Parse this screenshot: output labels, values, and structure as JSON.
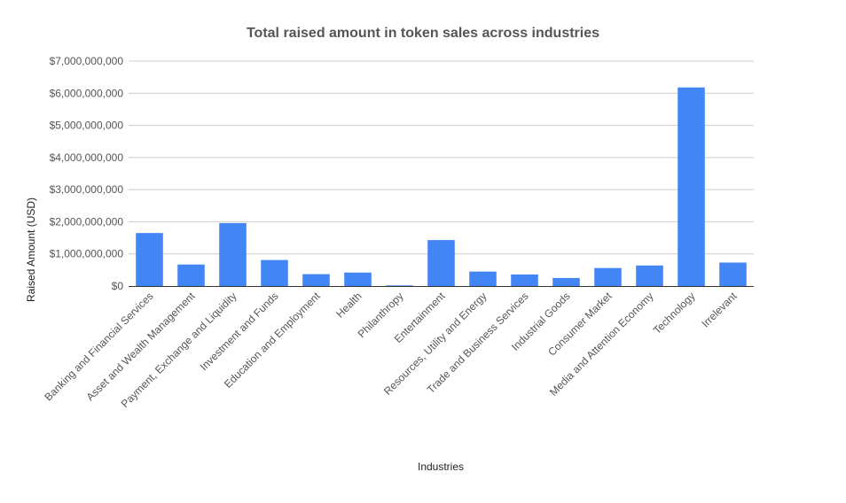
{
  "chart_data": {
    "type": "bar",
    "title": "Total raised amount in token sales across industries",
    "xlabel": "Industries",
    "ylabel": "Raised Amount (USD)",
    "ylim": [
      0,
      7000000000
    ],
    "yticks": [
      {
        "value": 0,
        "label": "$0"
      },
      {
        "value": 1000000000,
        "label": "$1,000,000,000"
      },
      {
        "value": 2000000000,
        "label": "$2,000,000,000"
      },
      {
        "value": 3000000000,
        "label": "$3,000,000,000"
      },
      {
        "value": 4000000000,
        "label": "$4,000,000,000"
      },
      {
        "value": 5000000000,
        "label": "$5,000,000,000"
      },
      {
        "value": 6000000000,
        "label": "$6,000,000,000"
      },
      {
        "value": 7000000000,
        "label": "$7,000,000,000"
      }
    ],
    "grid": true,
    "legend": "none",
    "bar_color": "#4285f4",
    "categories": [
      "Banking and Financial Services",
      "Asset and Wealth Management",
      "Payment, Exchange and Liquidity",
      "Investment and Funds",
      "Education and Employment",
      "Health",
      "Philanthropy",
      "Entertainment",
      "Resources, Utility and Energy",
      "Trade and Business Services",
      "Industrial Goods",
      "Consumer Market",
      "Media and Attention Economy",
      "Technology",
      "Irrelevant"
    ],
    "values": [
      1650000000,
      670000000,
      1960000000,
      810000000,
      370000000,
      420000000,
      20000000,
      1430000000,
      450000000,
      360000000,
      250000000,
      560000000,
      640000000,
      6180000000,
      730000000
    ]
  }
}
